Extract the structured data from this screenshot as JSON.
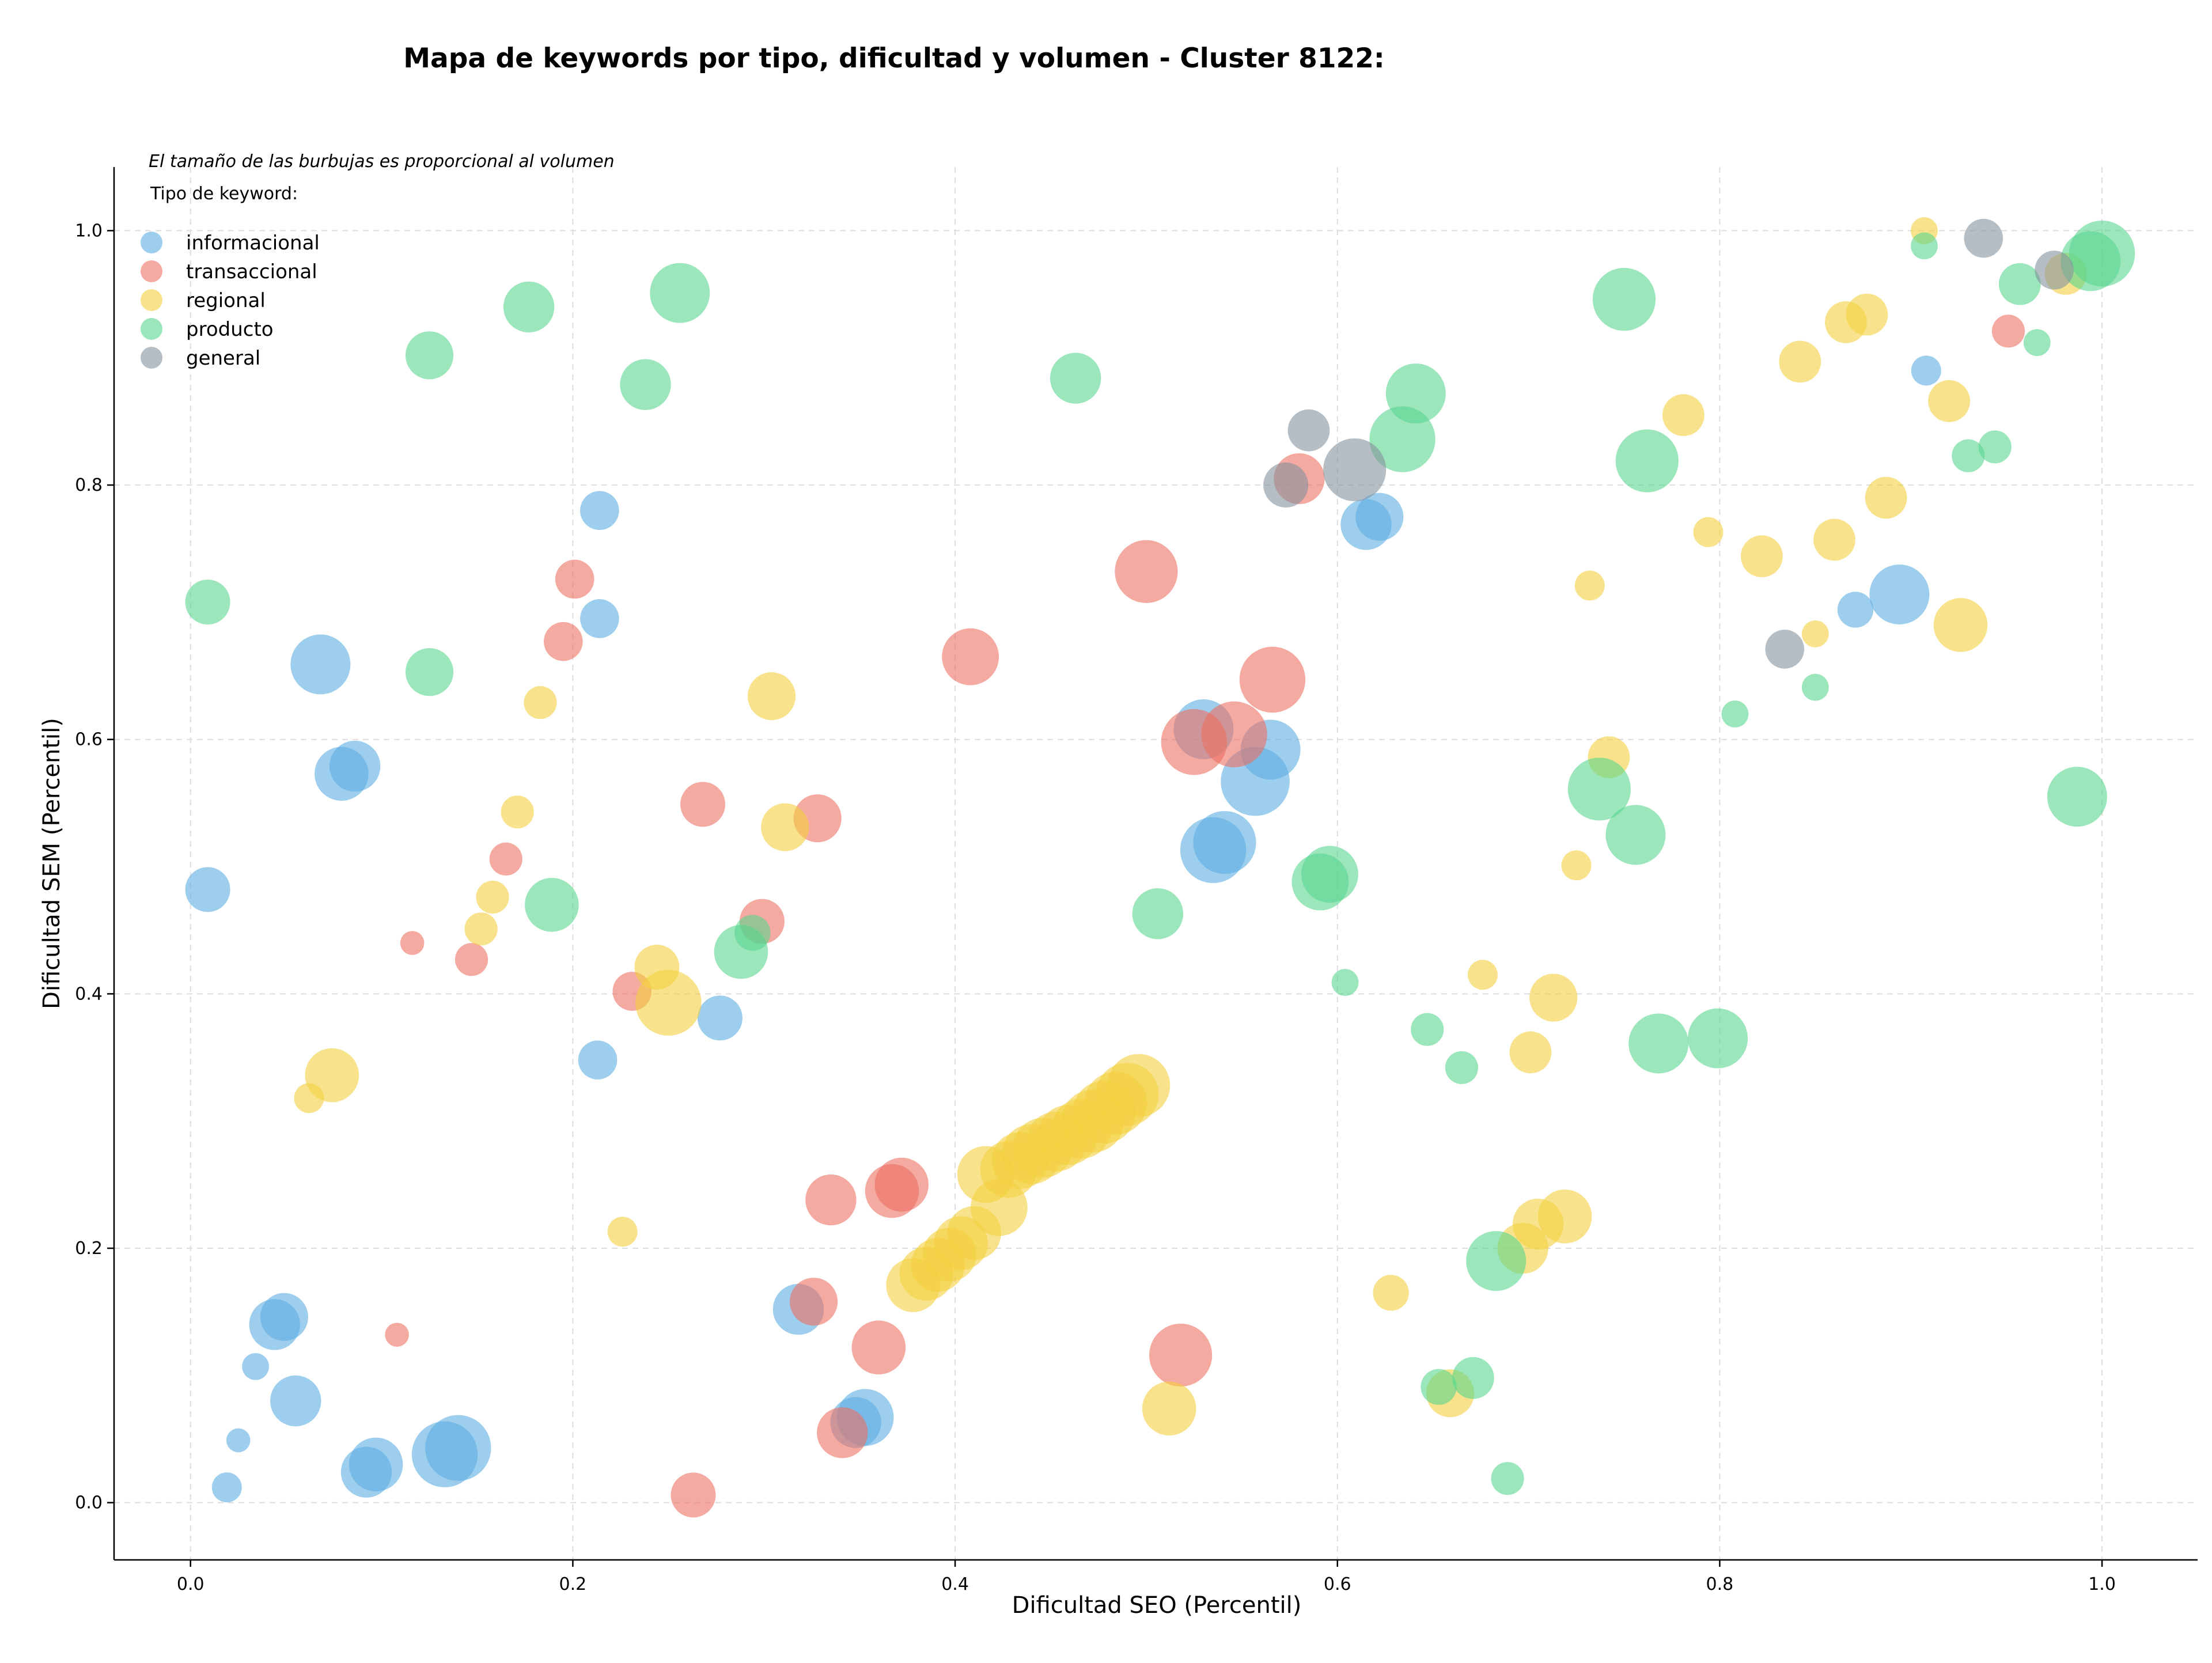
{
  "chart_data": {
    "type": "scatter",
    "title": "Mapa de keywords por tipo, dificultad y volumen - Cluster 8122:",
    "xlabel": "Dificultad SEO (Percentil)",
    "ylabel": "Dificultad SEM (Percentil)",
    "note": "El tamaño de las burbujas es proporcional al volumen",
    "legend_title": "Tipo de keyword:",
    "legend_position": "top-left",
    "grid": true,
    "xlim": [
      -0.04,
      1.05
    ],
    "ylim": [
      -0.045,
      1.05
    ],
    "x_ticks": [
      0.0,
      0.2,
      0.4,
      0.6,
      0.8,
      1.0
    ],
    "y_ticks": [
      0.0,
      0.2,
      0.4,
      0.6,
      0.8,
      1.0
    ],
    "x_tick_labels": [
      "0.0",
      "0.2",
      "0.4",
      "0.6",
      "0.8",
      "1.0"
    ],
    "y_tick_labels": [
      "0.0",
      "0.2",
      "0.4",
      "0.6",
      "0.8",
      "1.0"
    ],
    "size_encoding": "relative volume (1 = smallest bubble)",
    "series": [
      {
        "name": "informacional",
        "color": "#5DADE2",
        "points": [
          [
            0.019,
            0.012,
            1.0
          ],
          [
            0.025,
            0.049,
            0.8
          ],
          [
            0.034,
            0.107,
            0.9
          ],
          [
            0.009,
            0.482,
            1.5
          ],
          [
            0.044,
            0.14,
            1.7
          ],
          [
            0.049,
            0.146,
            1.6
          ],
          [
            0.055,
            0.08,
            1.7
          ],
          [
            0.068,
            0.659,
            2.0
          ],
          [
            0.079,
            0.573,
            1.8
          ],
          [
            0.086,
            0.579,
            1.7
          ],
          [
            0.092,
            0.024,
            1.7
          ],
          [
            0.097,
            0.03,
            1.8
          ],
          [
            0.133,
            0.038,
            2.2
          ],
          [
            0.14,
            0.043,
            2.2
          ],
          [
            0.214,
            0.78,
            1.3
          ],
          [
            0.214,
            0.695,
            1.3
          ],
          [
            0.213,
            0.348,
            1.3
          ],
          [
            0.277,
            0.381,
            1.5
          ],
          [
            0.318,
            0.152,
            1.7
          ],
          [
            0.353,
            0.067,
            1.9
          ],
          [
            0.348,
            0.063,
            1.7
          ],
          [
            0.53,
            0.608,
            2.0
          ],
          [
            0.535,
            0.513,
            2.2
          ],
          [
            0.541,
            0.519,
            2.1
          ],
          [
            0.557,
            0.567,
            2.3
          ],
          [
            0.565,
            0.592,
            2.0
          ],
          [
            0.615,
            0.769,
            1.7
          ],
          [
            0.622,
            0.775,
            1.6
          ],
          [
            0.871,
            0.702,
            1.2
          ],
          [
            0.894,
            0.714,
            2.0
          ],
          [
            0.908,
            0.89,
            1.0
          ]
        ]
      },
      {
        "name": "transaccional",
        "color": "#EC7063",
        "points": [
          [
            0.108,
            0.132,
            0.8
          ],
          [
            0.116,
            0.44,
            0.8
          ],
          [
            0.147,
            0.427,
            1.1
          ],
          [
            0.165,
            0.506,
            1.1
          ],
          [
            0.195,
            0.677,
            1.3
          ],
          [
            0.201,
            0.726,
            1.3
          ],
          [
            0.231,
            0.402,
            1.3
          ],
          [
            0.263,
            0.006,
            1.5
          ],
          [
            0.268,
            0.549,
            1.5
          ],
          [
            0.299,
            0.457,
            1.5
          ],
          [
            0.326,
            0.158,
            1.6
          ],
          [
            0.328,
            0.538,
            1.6
          ],
          [
            0.335,
            0.238,
            1.7
          ],
          [
            0.341,
            0.055,
            1.7
          ],
          [
            0.36,
            0.122,
            1.8
          ],
          [
            0.367,
            0.245,
            1.8
          ],
          [
            0.372,
            0.25,
            1.8
          ],
          [
            0.408,
            0.665,
            1.9
          ],
          [
            0.5,
            0.732,
            2.1
          ],
          [
            0.518,
            0.116,
            2.1
          ],
          [
            0.525,
            0.598,
            2.2
          ],
          [
            0.546,
            0.604,
            2.2
          ],
          [
            0.566,
            0.647,
            2.2
          ],
          [
            0.58,
            0.805,
            1.7
          ],
          [
            0.951,
            0.921,
            1.1
          ]
        ]
      },
      {
        "name": "regional",
        "color": "#F4D03F",
        "points": [
          [
            0.062,
            0.318,
            1.0
          ],
          [
            0.074,
            0.336,
            1.8
          ],
          [
            0.152,
            0.451,
            1.1
          ],
          [
            0.158,
            0.476,
            1.1
          ],
          [
            0.171,
            0.543,
            1.1
          ],
          [
            0.183,
            0.629,
            1.1
          ],
          [
            0.226,
            0.213,
            1.0
          ],
          [
            0.244,
            0.421,
            1.5
          ],
          [
            0.25,
            0.393,
            2.2
          ],
          [
            0.304,
            0.634,
            1.6
          ],
          [
            0.311,
            0.531,
            1.6
          ],
          [
            0.378,
            0.171,
            1.8
          ],
          [
            0.385,
            0.18,
            1.8
          ],
          [
            0.391,
            0.187,
            1.8
          ],
          [
            0.397,
            0.195,
            1.8
          ],
          [
            0.403,
            0.204,
            1.8
          ],
          [
            0.41,
            0.212,
            1.8
          ],
          [
            0.416,
            0.258,
            1.9
          ],
          [
            0.423,
            0.232,
            1.9
          ],
          [
            0.428,
            0.262,
            1.9
          ],
          [
            0.434,
            0.269,
            1.9
          ],
          [
            0.44,
            0.274,
            2.0
          ],
          [
            0.446,
            0.279,
            2.0
          ],
          [
            0.453,
            0.284,
            2.0
          ],
          [
            0.459,
            0.289,
            2.0
          ],
          [
            0.466,
            0.294,
            2.0
          ],
          [
            0.472,
            0.3,
            2.1
          ],
          [
            0.478,
            0.307,
            2.1
          ],
          [
            0.484,
            0.314,
            2.1
          ],
          [
            0.49,
            0.321,
            2.1
          ],
          [
            0.496,
            0.328,
            2.1
          ],
          [
            0.512,
            0.074,
            1.8
          ],
          [
            0.628,
            0.165,
            1.2
          ],
          [
            0.659,
            0.086,
            1.6
          ],
          [
            0.676,
            0.415,
            1.0
          ],
          [
            0.697,
            0.2,
            1.7
          ],
          [
            0.701,
            0.354,
            1.4
          ],
          [
            0.705,
            0.219,
            1.7
          ],
          [
            0.713,
            0.397,
            1.6
          ],
          [
            0.719,
            0.225,
            1.8
          ],
          [
            0.725,
            0.501,
            1.0
          ],
          [
            0.732,
            0.721,
            1.0
          ],
          [
            0.742,
            0.586,
            1.4
          ],
          [
            0.781,
            0.855,
            1.4
          ],
          [
            0.794,
            0.763,
            1.0
          ],
          [
            0.822,
            0.744,
            1.4
          ],
          [
            0.842,
            0.897,
            1.4
          ],
          [
            0.85,
            0.683,
            0.9
          ],
          [
            0.86,
            0.757,
            1.4
          ],
          [
            0.866,
            0.928,
            1.4
          ],
          [
            0.877,
            0.934,
            1.4
          ],
          [
            0.887,
            0.79,
            1.4
          ],
          [
            0.907,
            1.0,
            0.9
          ],
          [
            0.92,
            0.866,
            1.4
          ],
          [
            0.926,
            0.69,
            1.8
          ],
          [
            0.981,
            0.966,
            1.4
          ]
        ]
      },
      {
        "name": "producto",
        "color": "#58D68D",
        "points": [
          [
            0.009,
            0.708,
            1.5
          ],
          [
            0.125,
            0.902,
            1.6
          ],
          [
            0.125,
            0.653,
            1.6
          ],
          [
            0.177,
            0.94,
            1.7
          ],
          [
            0.189,
            0.47,
            1.8
          ],
          [
            0.238,
            0.879,
            1.7
          ],
          [
            0.256,
            0.951,
            2.0
          ],
          [
            0.288,
            0.433,
            1.8
          ],
          [
            0.294,
            0.448,
            1.2
          ],
          [
            0.463,
            0.884,
            1.7
          ],
          [
            0.506,
            0.463,
            1.7
          ],
          [
            0.591,
            0.488,
            1.9
          ],
          [
            0.596,
            0.494,
            1.9
          ],
          [
            0.604,
            0.409,
            0.9
          ],
          [
            0.634,
            0.836,
            2.2
          ],
          [
            0.641,
            0.872,
            2.0
          ],
          [
            0.647,
            0.372,
            1.1
          ],
          [
            0.653,
            0.091,
            1.2
          ],
          [
            0.665,
            0.342,
            1.1
          ],
          [
            0.671,
            0.098,
            1.4
          ],
          [
            0.683,
            0.19,
            2.0
          ],
          [
            0.689,
            0.019,
            1.1
          ],
          [
            0.737,
            0.561,
            2.1
          ],
          [
            0.75,
            0.946,
            2.1
          ],
          [
            0.756,
            0.525,
            2.0
          ],
          [
            0.762,
            0.819,
            2.1
          ],
          [
            0.768,
            0.361,
            2.0
          ],
          [
            0.799,
            0.365,
            2.0
          ],
          [
            0.808,
            0.62,
            0.9
          ],
          [
            0.85,
            0.641,
            0.9
          ],
          [
            0.907,
            0.988,
            0.9
          ],
          [
            0.93,
            0.823,
            1.1
          ],
          [
            0.944,
            0.83,
            1.1
          ],
          [
            0.957,
            0.958,
            1.4
          ],
          [
            0.966,
            0.912,
            0.9
          ],
          [
            0.987,
            0.555,
            2.0
          ],
          [
            0.994,
            0.976,
            2.0
          ],
          [
            1.0,
            0.982,
            2.2
          ]
        ]
      },
      {
        "name": "general",
        "color": "#85929E",
        "points": [
          [
            0.573,
            0.8,
            1.5
          ],
          [
            0.585,
            0.843,
            1.4
          ],
          [
            0.609,
            0.812,
            2.1
          ],
          [
            0.834,
            0.671,
            1.3
          ],
          [
            0.938,
            0.994,
            1.3
          ],
          [
            0.975,
            0.969,
            1.3
          ]
        ]
      }
    ]
  }
}
